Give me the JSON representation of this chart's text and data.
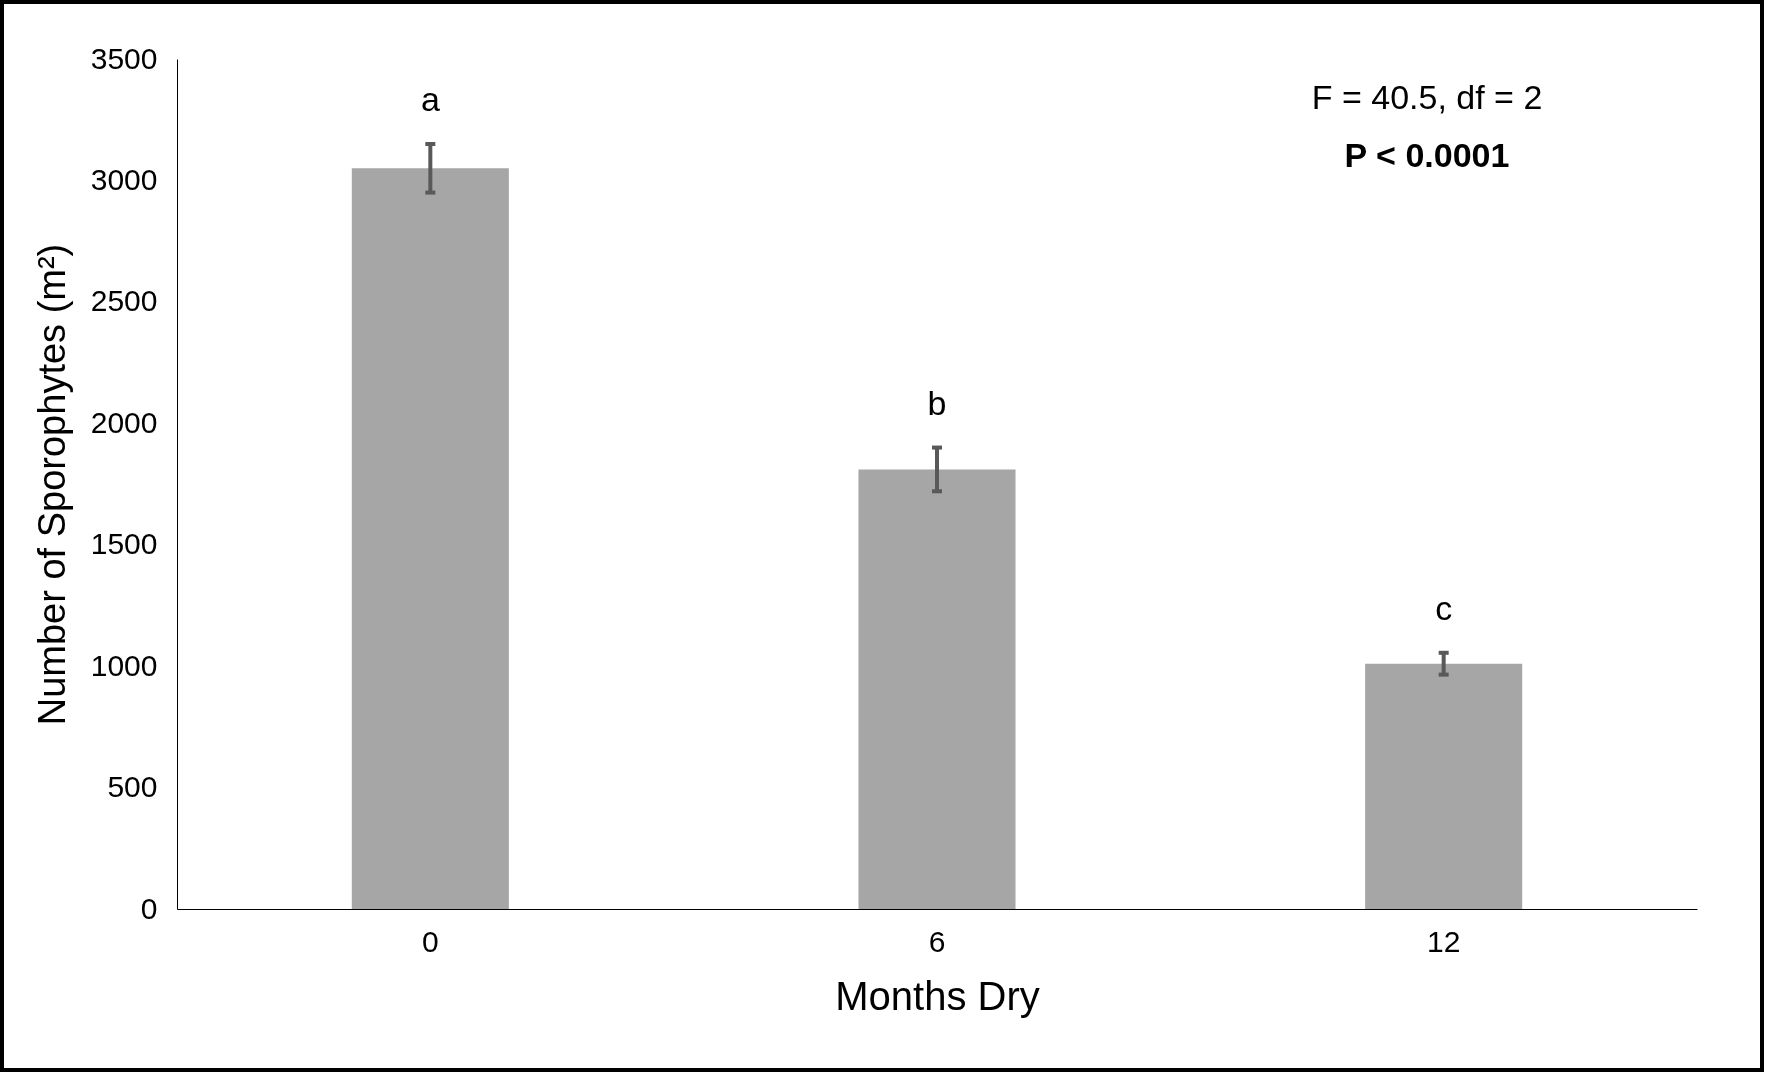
{
  "chart_data": {
    "type": "bar",
    "xlabel": "Months Dry",
    "ylabel": "Number of Sporophytes (m²)",
    "categories": [
      "0",
      "6",
      "12"
    ],
    "values": [
      3050,
      1810,
      1010
    ],
    "errors": [
      100,
      90,
      45
    ],
    "color": "#a6a6a6",
    "ylim": [
      0,
      3500
    ],
    "yticks": [
      0,
      500,
      1000,
      1500,
      2000,
      2500,
      3000,
      3500
    ],
    "grid": false,
    "annotations": [
      {
        "text": "a",
        "x": "0",
        "y": 3150
      },
      {
        "text": "b",
        "x": "6",
        "y": 1900
      },
      {
        "text": "c",
        "x": "12",
        "y": 1055
      },
      "F = 40.5, df = 2",
      "P < 0.0001"
    ]
  }
}
